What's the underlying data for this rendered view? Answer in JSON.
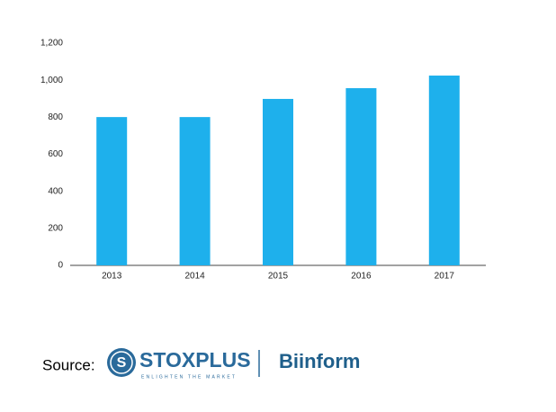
{
  "chart_data": {
    "type": "bar",
    "categories": [
      "2013",
      "2014",
      "2015",
      "2016",
      "2017"
    ],
    "values": [
      801,
      801,
      899,
      957,
      1025
    ],
    "color": "#1eb0ec",
    "ylim": [
      0,
      1200
    ],
    "yticks": [
      0,
      200,
      400,
      600,
      800,
      {
        "value": 1000,
        "label": "1,000"
      },
      {
        "value": 1200,
        "label": "1,200"
      }
    ],
    "grid": false
  },
  "footer": {
    "label": "Source:",
    "brand": "STOXPLUS",
    "tagline": "ENLIGHTEN THE MARKET",
    "partner": "Biinform"
  }
}
